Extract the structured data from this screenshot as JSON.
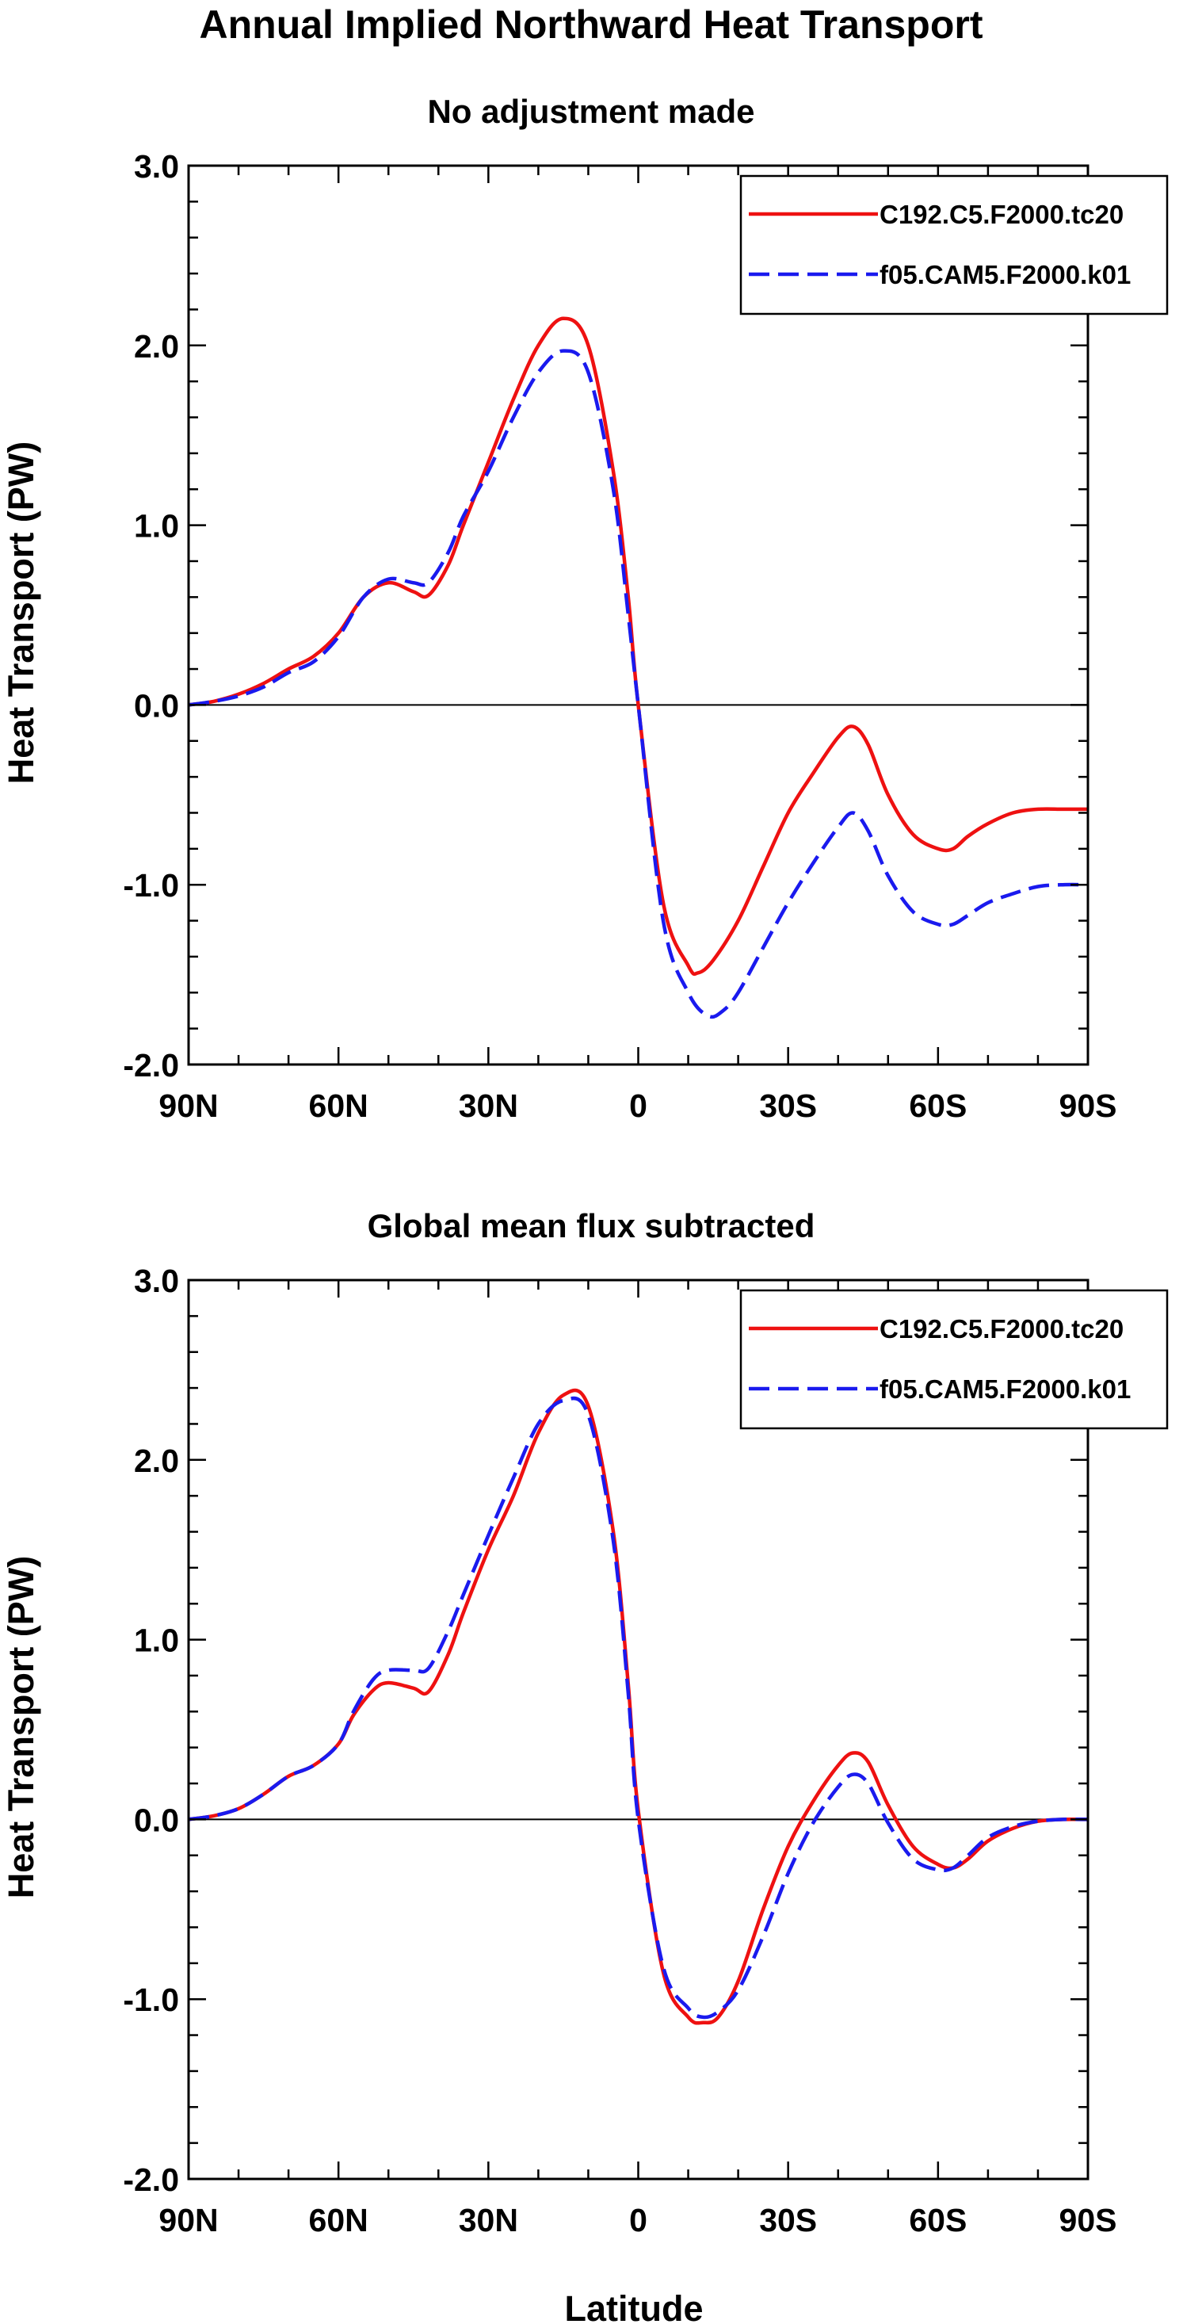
{
  "figure": {
    "title": "Annual Implied Northward Heat Transport",
    "x_axis_label": "Latitude"
  },
  "chart_data": [
    {
      "type": "line",
      "title": "No adjustment made",
      "xlabel": "Latitude",
      "ylabel": "Heat Transport (PW)",
      "xlim": [
        90,
        -90
      ],
      "ylim": [
        -2.0,
        3.0
      ],
      "x_ticks": [
        90,
        60,
        30,
        0,
        -30,
        -60,
        -90
      ],
      "x_tick_labels": [
        "90N",
        "60N",
        "30N",
        "0",
        "30S",
        "60S",
        "90S"
      ],
      "y_ticks": [
        -2.0,
        -1.0,
        0.0,
        1.0,
        2.0,
        3.0
      ],
      "y_tick_labels": [
        "-2.0",
        "-1.0",
        "0.0",
        "1.0",
        "2.0",
        "3.0"
      ],
      "reference_line": 0.0,
      "legend_position": "top-right",
      "series": [
        {
          "name": "C192.C5.F2000.tc20",
          "color": "#ee1111",
          "dash": "solid",
          "x": [
            90,
            85,
            80,
            75,
            70,
            65,
            60,
            55,
            50,
            45,
            42,
            38,
            35,
            30,
            25,
            20,
            15,
            10,
            5,
            2,
            0,
            -5,
            -10,
            -12,
            -15,
            -20,
            -25,
            -30,
            -35,
            -40,
            -43,
            -46,
            -50,
            -55,
            -60,
            -63,
            -66,
            -70,
            -75,
            -80,
            -85,
            -90
          ],
          "y": [
            0.0,
            0.02,
            0.06,
            0.12,
            0.2,
            0.27,
            0.4,
            0.6,
            0.68,
            0.63,
            0.61,
            0.78,
            1.0,
            1.35,
            1.7,
            2.0,
            2.15,
            2.0,
            1.3,
            0.6,
            0.0,
            -1.1,
            -1.45,
            -1.49,
            -1.42,
            -1.2,
            -0.9,
            -0.6,
            -0.38,
            -0.18,
            -0.12,
            -0.22,
            -0.5,
            -0.72,
            -0.8,
            -0.8,
            -0.73,
            -0.66,
            -0.6,
            -0.58,
            -0.58,
            -0.58
          ]
        },
        {
          "name": "f05.CAM5.F2000.k01",
          "color": "#1a1aee",
          "dash": "dashed",
          "x": [
            90,
            85,
            80,
            75,
            70,
            65,
            60,
            55,
            50,
            45,
            42,
            38,
            35,
            30,
            25,
            20,
            15,
            10,
            5,
            2,
            0,
            -5,
            -10,
            -14,
            -17,
            -20,
            -25,
            -30,
            -35,
            -40,
            -43,
            -46,
            -50,
            -55,
            -60,
            -63,
            -66,
            -70,
            -75,
            -80,
            -85,
            -90
          ],
          "y": [
            0.0,
            0.02,
            0.05,
            0.1,
            0.18,
            0.24,
            0.38,
            0.6,
            0.7,
            0.68,
            0.68,
            0.85,
            1.05,
            1.3,
            1.6,
            1.85,
            1.97,
            1.85,
            1.2,
            0.5,
            0.0,
            -1.2,
            -1.6,
            -1.73,
            -1.7,
            -1.6,
            -1.35,
            -1.1,
            -0.88,
            -0.68,
            -0.6,
            -0.7,
            -0.95,
            -1.15,
            -1.22,
            -1.22,
            -1.17,
            -1.1,
            -1.05,
            -1.01,
            -1.0,
            -1.0
          ]
        }
      ]
    },
    {
      "type": "line",
      "title": "Global mean flux subtracted",
      "xlabel": "Latitude",
      "ylabel": "Heat Transport (PW)",
      "xlim": [
        90,
        -90
      ],
      "ylim": [
        -2.0,
        3.0
      ],
      "x_ticks": [
        90,
        60,
        30,
        0,
        -30,
        -60,
        -90
      ],
      "x_tick_labels": [
        "90N",
        "60N",
        "30N",
        "0",
        "30S",
        "60S",
        "90S"
      ],
      "y_ticks": [
        -2.0,
        -1.0,
        0.0,
        1.0,
        2.0,
        3.0
      ],
      "y_tick_labels": [
        "-2.0",
        "-1.0",
        "0.0",
        "1.0",
        "2.0",
        "3.0"
      ],
      "reference_line": 0.0,
      "legend_position": "top-right",
      "series": [
        {
          "name": "C192.C5.F2000.tc20",
          "color": "#ee1111",
          "dash": "solid",
          "x": [
            90,
            85,
            80,
            75,
            70,
            65,
            60,
            57,
            53,
            50,
            45,
            42,
            38,
            35,
            30,
            25,
            20,
            15,
            10,
            5,
            2,
            0,
            -5,
            -10,
            -13,
            -16,
            -20,
            -25,
            -30,
            -35,
            -40,
            -43,
            -46,
            -50,
            -55,
            -60,
            -63,
            -66,
            -70,
            -75,
            -80,
            -85,
            -90
          ],
          "y": [
            0.0,
            0.02,
            0.06,
            0.14,
            0.24,
            0.3,
            0.42,
            0.58,
            0.72,
            0.76,
            0.73,
            0.71,
            0.92,
            1.15,
            1.5,
            1.8,
            2.15,
            2.36,
            2.3,
            1.6,
            0.75,
            0.05,
            -0.85,
            -1.1,
            -1.13,
            -1.1,
            -0.9,
            -0.5,
            -0.15,
            0.1,
            0.3,
            0.37,
            0.32,
            0.08,
            -0.15,
            -0.25,
            -0.27,
            -0.22,
            -0.12,
            -0.05,
            -0.01,
            0.0,
            0.0
          ]
        },
        {
          "name": "f05.CAM5.F2000.k01",
          "color": "#1a1aee",
          "dash": "dashed",
          "x": [
            90,
            85,
            80,
            75,
            70,
            65,
            60,
            57,
            53,
            50,
            45,
            42,
            38,
            35,
            30,
            25,
            20,
            15,
            10,
            5,
            2,
            0,
            -5,
            -10,
            -13,
            -16,
            -20,
            -25,
            -30,
            -35,
            -40,
            -43,
            -46,
            -50,
            -55,
            -60,
            -63,
            -66,
            -70,
            -75,
            -80,
            -85,
            -90
          ],
          "y": [
            0.0,
            0.02,
            0.06,
            0.14,
            0.24,
            0.3,
            0.42,
            0.6,
            0.78,
            0.83,
            0.83,
            0.84,
            1.05,
            1.25,
            1.58,
            1.9,
            2.2,
            2.33,
            2.25,
            1.55,
            0.7,
            0.0,
            -0.82,
            -1.05,
            -1.1,
            -1.07,
            -0.95,
            -0.65,
            -0.3,
            -0.02,
            0.18,
            0.25,
            0.2,
            -0.02,
            -0.22,
            -0.28,
            -0.27,
            -0.2,
            -0.1,
            -0.04,
            -0.01,
            0.0,
            0.0
          ]
        }
      ]
    }
  ]
}
